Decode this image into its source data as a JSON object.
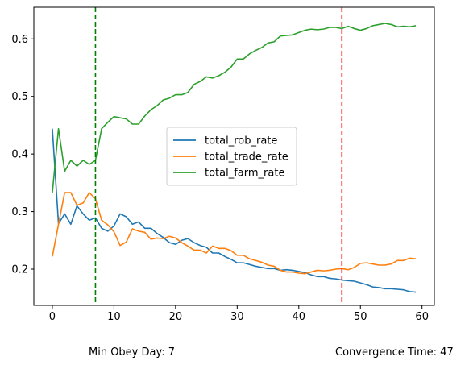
{
  "chart_data": {
    "type": "line",
    "x": [
      0,
      1,
      2,
      3,
      4,
      5,
      6,
      7,
      8,
      9,
      10,
      11,
      12,
      13,
      14,
      15,
      16,
      17,
      18,
      19,
      20,
      21,
      22,
      23,
      24,
      25,
      26,
      27,
      28,
      29,
      30,
      31,
      32,
      33,
      34,
      35,
      36,
      37,
      38,
      39,
      40,
      41,
      42,
      43,
      44,
      45,
      46,
      47,
      48,
      49,
      50,
      51,
      52,
      53,
      54,
      55,
      56,
      57,
      58,
      59
    ],
    "xlim": [
      -3,
      62
    ],
    "ylim": [
      0.137,
      0.655
    ],
    "xticks": [
      0,
      10,
      20,
      30,
      40,
      50,
      60
    ],
    "yticks": [
      0.2,
      0.3,
      0.4,
      0.5,
      0.6
    ],
    "xtick_labels": [
      "0",
      "10",
      "20",
      "30",
      "40",
      "50",
      "60"
    ],
    "ytick_labels": [
      "0.2",
      "0.3",
      "0.4",
      "0.5",
      "0.6"
    ],
    "legend_position": "center",
    "grid": false,
    "series": [
      {
        "name": "total_rob_rate",
        "color": "#1f77b4",
        "values": [
          0.444,
          0.279,
          0.296,
          0.278,
          0.31,
          0.296,
          0.285,
          0.289,
          0.271,
          0.266,
          0.275,
          0.296,
          0.291,
          0.278,
          0.282,
          0.271,
          0.271,
          0.262,
          0.255,
          0.246,
          0.243,
          0.25,
          0.253,
          0.246,
          0.241,
          0.238,
          0.228,
          0.228,
          0.222,
          0.217,
          0.211,
          0.211,
          0.208,
          0.205,
          0.203,
          0.201,
          0.201,
          0.198,
          0.199,
          0.198,
          0.196,
          0.194,
          0.19,
          0.187,
          0.187,
          0.184,
          0.183,
          0.181,
          0.18,
          0.179,
          0.176,
          0.173,
          0.169,
          0.168,
          0.166,
          0.166,
          0.165,
          0.164,
          0.161,
          0.16
        ]
      },
      {
        "name": "total_trade_rate",
        "color": "#ff7f0e",
        "values": [
          0.222,
          0.278,
          0.333,
          0.333,
          0.311,
          0.315,
          0.333,
          0.322,
          0.285,
          0.277,
          0.265,
          0.241,
          0.247,
          0.27,
          0.266,
          0.264,
          0.252,
          0.254,
          0.253,
          0.257,
          0.254,
          0.246,
          0.24,
          0.233,
          0.233,
          0.228,
          0.24,
          0.236,
          0.236,
          0.232,
          0.224,
          0.224,
          0.218,
          0.215,
          0.212,
          0.207,
          0.205,
          0.198,
          0.195,
          0.195,
          0.193,
          0.192,
          0.195,
          0.198,
          0.197,
          0.198,
          0.2,
          0.201,
          0.199,
          0.203,
          0.21,
          0.211,
          0.209,
          0.207,
          0.207,
          0.209,
          0.215,
          0.215,
          0.219,
          0.218
        ]
      },
      {
        "name": "total_farm_rate",
        "color": "#2ca02c",
        "values": [
          0.333,
          0.444,
          0.37,
          0.389,
          0.379,
          0.389,
          0.382,
          0.389,
          0.444,
          0.455,
          0.465,
          0.463,
          0.461,
          0.452,
          0.452,
          0.466,
          0.477,
          0.484,
          0.494,
          0.497,
          0.503,
          0.503,
          0.507,
          0.521,
          0.526,
          0.534,
          0.532,
          0.536,
          0.542,
          0.551,
          0.565,
          0.565,
          0.574,
          0.58,
          0.585,
          0.593,
          0.595,
          0.605,
          0.606,
          0.607,
          0.611,
          0.615,
          0.617,
          0.616,
          0.617,
          0.62,
          0.62,
          0.618,
          0.622,
          0.618,
          0.615,
          0.618,
          0.623,
          0.625,
          0.627,
          0.625,
          0.621,
          0.622,
          0.621,
          0.623
        ]
      }
    ],
    "vlines": [
      {
        "x": 7,
        "color": "#008000",
        "style": "dashed"
      },
      {
        "x": 47,
        "color": "#ff0000",
        "style": "dashed"
      }
    ]
  },
  "footer": {
    "min_obey_day": "Min Obey Day: 7",
    "convergence_time": "Convergence Time: 47"
  }
}
